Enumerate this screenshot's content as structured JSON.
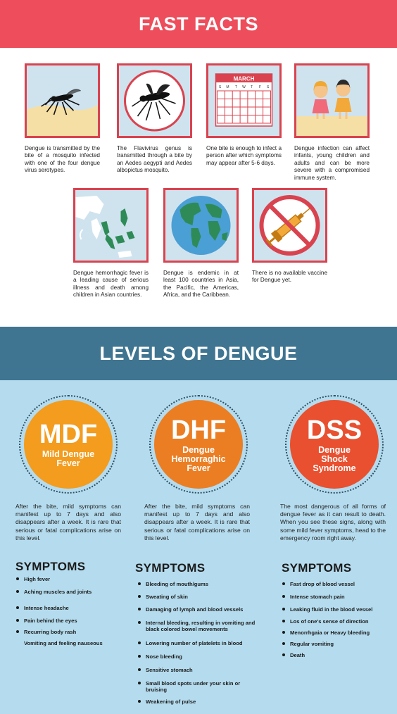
{
  "header": {
    "title": "FAST FACTS"
  },
  "facts": [
    {
      "icon": "mosquito-on-skin-icon",
      "text": "Dengue is transmitted by the bite of a mosquito infected with one of the four dengue virus serotypes."
    },
    {
      "icon": "mosquito-icon",
      "text": "The Flavivirus genus is transmitted through a bite by an Aedes aegypti and Aedes albopictus mosquito."
    },
    {
      "icon": "calendar-icon",
      "calendar_month": "MARCH",
      "calendar_days": [
        "S",
        "M",
        "T",
        "W",
        "T",
        "F",
        "S"
      ],
      "text": "One bite is enough to infect a person after which symptoms may appear after 5-6 days."
    },
    {
      "icon": "children-icon",
      "text": "Dengue infection can affect infants, young children and adults and can be more severe with a compromised immune system."
    },
    {
      "icon": "asia-map-icon",
      "text": "Dengue hemorrhagic fever is a leading cause of serious illness and death among children in Asian countries."
    },
    {
      "icon": "globe-icon",
      "text": "Dengue is endemic in at least 100 countries in Asia, the Pacific, the Americas, Africa, and the Caribbean."
    },
    {
      "icon": "no-vaccine-icon",
      "text": "There is no available vaccine for Dengue yet."
    }
  ],
  "levels": {
    "title": "LEVELS OF DENGUE",
    "items": [
      {
        "abbr": "MDF",
        "full": "Mild Dengue Fever",
        "color": "#f39c1e",
        "description": "After the bite, mild symptoms can manifest up to 7 days and also disappears after a week. It is rare that serious or fatal complications arise on this level.",
        "symptoms_title": "SYMPTOMS",
        "symptoms": [
          "High fever",
          "Aching muscles and joints",
          "Intense headache",
          "Pain behind the eyes",
          "Recurring body rash",
          "Vomiting and feeling nauseous"
        ]
      },
      {
        "abbr": "DHF",
        "full": "Dengue Hemorraghic Fever",
        "color": "#eb7e23",
        "description": "After the bite, mild symptoms can manifest up to 7 days and also disappears after a week. It is rare that serious or fatal complications arise on this level.",
        "symptoms_title": "SYMPTOMS",
        "symptoms": [
          "Bleeding of mouth/gums",
          "Sweating of skin",
          "Damaging of lymph and blood vessels",
          "Internal bleeding, resulting in vomiting and black colored bowel movements",
          "Lowering number of platelets in blood",
          "Nose bleeding",
          "Sensitive stomach",
          "Small blood spots under your skin or bruising",
          "Weakening of pulse"
        ]
      },
      {
        "abbr": "DSS",
        "full": "Dengue Shock Syndrome",
        "color": "#e9502f",
        "description": "The most dangerous of all forms of dengue fever as it can result to death. When you see these signs, along with some mild fever symptoms, head to the emergency room right away.",
        "symptoms_title": "SYMPTOMS",
        "symptoms": [
          "Fast drop of blood vessel",
          "Intense stomach pain",
          "Leaking fluid in the blood vessel",
          "Los of one's sense of direction",
          "Menorrhgaia or Heavy bleeding",
          "Regular vomiting",
          "Death"
        ]
      }
    ]
  },
  "colors": {
    "header_red": "#ee4d5b",
    "band_blue": "#3f7591",
    "light_blue": "#b5dcee",
    "tile_border": "#d9434f"
  }
}
